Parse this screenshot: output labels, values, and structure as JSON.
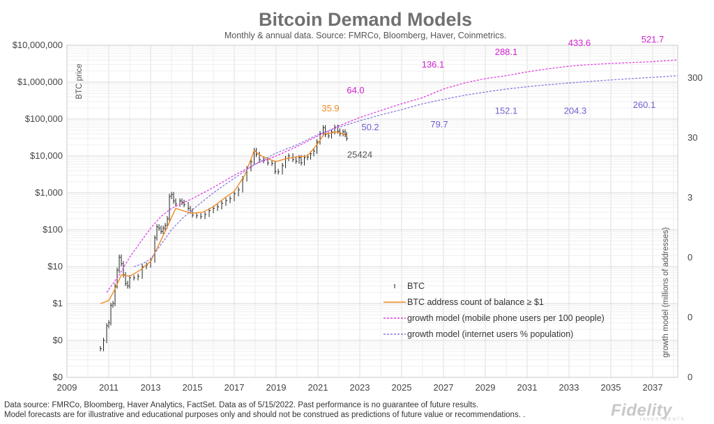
{
  "title": "Bitcoin Demand Models",
  "subtitle": "Monthly & annual data.  Source: FMRCo, Bloomberg, Haver, Coinmetrics.",
  "footer": {
    "line1": "Data source: FMRCo, Bloomberg, Haver Analytics, FactSet. Data as of 5/15/2022. Past performance is no guarantee of future results.",
    "line2": "Model forecasts are for illustrative and educational purposes only and should not be construed as predictions of future value or recommendations. ."
  },
  "logo": {
    "text": "Fidelity",
    "sub": "INVESTMENTS"
  },
  "colors": {
    "btc": "#222222",
    "address": "#f08a24",
    "mobile": "#e040e0",
    "internet": "#8a7ae0",
    "ann_mobile": "#d020d0",
    "ann_internet": "#7060d0",
    "ann_address": "#f08a24",
    "ann_btc": "#555555"
  },
  "chart_data": {
    "type": "line",
    "title": "Bitcoin Demand Models",
    "ylabel": "BTC price",
    "ylabel_right": "growth model (millions of addresses)",
    "x_ticks": [
      "2009",
      "2011",
      "2013",
      "2015",
      "2017",
      "2019",
      "2021",
      "2023",
      "2025",
      "2027",
      "2029",
      "2031",
      "2033",
      "2035",
      "2037"
    ],
    "xlim": [
      2009,
      2038.2
    ],
    "y_scale": "log",
    "y_tick_labels": [
      "$10,000,000",
      "$1,000,000",
      "$100,000",
      "$10,000",
      "$1,000",
      "$100",
      "$10",
      "$1",
      "$0",
      "$0"
    ],
    "y_tick_values": [
      10000000,
      1000000,
      100000,
      10000,
      1000,
      100,
      10,
      1,
      0.1,
      0.01
    ],
    "ylim": [
      0.01,
      10000000
    ],
    "right_tick_labels": [
      "300",
      "30",
      "3",
      "0",
      "0",
      "0"
    ],
    "right_tick_values": [
      300,
      30,
      3,
      0.3,
      0.03,
      0.003
    ],
    "grid": true,
    "legend_position": "bottom-center",
    "legend": [
      "BTC",
      "BTC address count of balance ≥ $1",
      "growth model (mobile phone users per 100 people)",
      "growth model (internet users % population)"
    ],
    "annotations": [
      {
        "text": "64.0",
        "x": 2022.8,
        "y": 500000,
        "series": "mobile"
      },
      {
        "text": "136.1",
        "x": 2026.5,
        "y": 2500000,
        "series": "mobile"
      },
      {
        "text": "288.1",
        "x": 2030.0,
        "y": 5500000,
        "series": "mobile"
      },
      {
        "text": "433.6",
        "x": 2033.5,
        "y": 9500000,
        "series": "mobile"
      },
      {
        "text": "521.7",
        "x": 2037.0,
        "y": 12000000,
        "series": "mobile"
      },
      {
        "text": "35.9",
        "x": 2021.6,
        "y": 160000,
        "series": "address"
      },
      {
        "text": "50.2",
        "x": 2023.5,
        "y": 50000,
        "series": "internet"
      },
      {
        "text": "79.7",
        "x": 2026.8,
        "y": 60000,
        "series": "internet"
      },
      {
        "text": "152.1",
        "x": 2030.0,
        "y": 140000,
        "series": "internet"
      },
      {
        "text": "204.3",
        "x": 2033.3,
        "y": 140000,
        "series": "internet"
      },
      {
        "text": "260.1",
        "x": 2036.6,
        "y": 200000,
        "series": "internet"
      },
      {
        "text": "25424",
        "x": 2023.0,
        "y": 9000,
        "series": "btc"
      }
    ],
    "series": [
      {
        "name": "BTC",
        "style": "ohlc",
        "points": [
          [
            2010.6,
            0.06
          ],
          [
            2010.75,
            0.1
          ],
          [
            2010.9,
            0.25
          ],
          [
            2011.0,
            0.3
          ],
          [
            2011.1,
            0.9
          ],
          [
            2011.2,
            1
          ],
          [
            2011.3,
            3
          ],
          [
            2011.4,
            8
          ],
          [
            2011.5,
            18
          ],
          [
            2011.6,
            12
          ],
          [
            2011.7,
            6
          ],
          [
            2011.8,
            3.5
          ],
          [
            2011.9,
            3
          ],
          [
            2012.0,
            5
          ],
          [
            2012.2,
            5
          ],
          [
            2012.4,
            5.5
          ],
          [
            2012.6,
            10
          ],
          [
            2012.8,
            11
          ],
          [
            2013.0,
            15
          ],
          [
            2013.2,
            60
          ],
          [
            2013.3,
            120
          ],
          [
            2013.4,
            110
          ],
          [
            2013.5,
            90
          ],
          [
            2013.6,
            110
          ],
          [
            2013.7,
            130
          ],
          [
            2013.8,
            200
          ],
          [
            2013.9,
            800
          ],
          [
            2014.0,
            900
          ],
          [
            2014.1,
            600
          ],
          [
            2014.2,
            500
          ],
          [
            2014.4,
            600
          ],
          [
            2014.5,
            550
          ],
          [
            2014.6,
            480
          ],
          [
            2014.8,
            380
          ],
          [
            2014.9,
            320
          ],
          [
            2015.0,
            250
          ],
          [
            2015.2,
            240
          ],
          [
            2015.4,
            230
          ],
          [
            2015.6,
            260
          ],
          [
            2015.8,
            330
          ],
          [
            2016.0,
            380
          ],
          [
            2016.2,
            420
          ],
          [
            2016.4,
            520
          ],
          [
            2016.6,
            620
          ],
          [
            2016.8,
            700
          ],
          [
            2017.0,
            950
          ],
          [
            2017.2,
            1200
          ],
          [
            2017.4,
            2400
          ],
          [
            2017.6,
            4500
          ],
          [
            2017.8,
            7000
          ],
          [
            2017.95,
            14000
          ],
          [
            2018.05,
            11000
          ],
          [
            2018.2,
            8000
          ],
          [
            2018.4,
            7500
          ],
          [
            2018.6,
            6500
          ],
          [
            2018.8,
            6300
          ],
          [
            2018.95,
            3800
          ],
          [
            2019.1,
            3700
          ],
          [
            2019.3,
            5500
          ],
          [
            2019.45,
            8500
          ],
          [
            2019.6,
            10000
          ],
          [
            2019.8,
            8000
          ],
          [
            2019.95,
            7200
          ],
          [
            2020.1,
            9000
          ],
          [
            2020.2,
            6500
          ],
          [
            2020.35,
            9000
          ],
          [
            2020.5,
            9300
          ],
          [
            2020.65,
            11500
          ],
          [
            2020.8,
            13500
          ],
          [
            2020.95,
            24000
          ],
          [
            2021.1,
            40000
          ],
          [
            2021.25,
            58000
          ],
          [
            2021.35,
            38000
          ],
          [
            2021.5,
            35000
          ],
          [
            2021.65,
            45000
          ],
          [
            2021.8,
            60000
          ],
          [
            2021.95,
            47000
          ],
          [
            2022.05,
            40000
          ],
          [
            2022.2,
            45000
          ],
          [
            2022.3,
            38000
          ],
          [
            2022.37,
            30000
          ]
        ]
      },
      {
        "name": "BTC address count of balance ≥ $1",
        "style": "solid",
        "points": [
          [
            2010.6,
            1.0
          ],
          [
            2011.0,
            1.2
          ],
          [
            2011.3,
            2.5
          ],
          [
            2011.6,
            6
          ],
          [
            2012.0,
            5.5
          ],
          [
            2012.5,
            8
          ],
          [
            2013.0,
            14
          ],
          [
            2013.4,
            40
          ],
          [
            2013.8,
            120
          ],
          [
            2014.2,
            380
          ],
          [
            2014.6,
            320
          ],
          [
            2015.0,
            280
          ],
          [
            2015.5,
            300
          ],
          [
            2016.0,
            420
          ],
          [
            2016.5,
            700
          ],
          [
            2017.0,
            1100
          ],
          [
            2017.5,
            3000
          ],
          [
            2017.95,
            14000
          ],
          [
            2018.3,
            10000
          ],
          [
            2018.7,
            8000
          ],
          [
            2019.0,
            7000
          ],
          [
            2019.5,
            8500
          ],
          [
            2020.0,
            9500
          ],
          [
            2020.5,
            10000
          ],
          [
            2021.0,
            22000
          ],
          [
            2021.3,
            40000
          ],
          [
            2021.6,
            42000
          ],
          [
            2021.9,
            45000
          ],
          [
            2022.2,
            40000
          ],
          [
            2022.37,
            35000
          ]
        ]
      },
      {
        "name": "growth model (mobile phone users per 100 people)",
        "style": "dashed",
        "points": [
          [
            2010.9,
            2
          ],
          [
            2011.5,
            6
          ],
          [
            2012.0,
            18
          ],
          [
            2012.5,
            45
          ],
          [
            2013.0,
            110
          ],
          [
            2013.5,
            230
          ],
          [
            2014.0,
            380
          ],
          [
            2014.5,
            520
          ],
          [
            2015.0,
            700
          ],
          [
            2016.0,
            1400
          ],
          [
            2017.0,
            3000
          ],
          [
            2018.0,
            6000
          ],
          [
            2019.0,
            10000
          ],
          [
            2020.0,
            18000
          ],
          [
            2021.0,
            35000
          ],
          [
            2022.0,
            65000
          ],
          [
            2023.0,
            110000
          ],
          [
            2024.0,
            170000
          ],
          [
            2025.0,
            260000
          ],
          [
            2026.0,
            380000
          ],
          [
            2027.0,
            650000
          ],
          [
            2028.0,
            950000
          ],
          [
            2029.0,
            1250000
          ],
          [
            2030.0,
            1500000
          ],
          [
            2031.0,
            1900000
          ],
          [
            2032.0,
            2300000
          ],
          [
            2033.0,
            2700000
          ],
          [
            2034.0,
            3000000
          ],
          [
            2035.0,
            3200000
          ],
          [
            2036.0,
            3400000
          ],
          [
            2037.0,
            3600000
          ],
          [
            2038.2,
            4000000
          ]
        ]
      },
      {
        "name": "growth model (internet users % population)",
        "style": "dashed",
        "points": [
          [
            2012.2,
            10
          ],
          [
            2012.6,
            12
          ],
          [
            2013.0,
            16
          ],
          [
            2013.5,
            40
          ],
          [
            2014.0,
            100
          ],
          [
            2014.5,
            200
          ],
          [
            2015.0,
            350
          ],
          [
            2016.0,
            1000
          ],
          [
            2017.0,
            2500
          ],
          [
            2018.0,
            6000
          ],
          [
            2019.0,
            12000
          ],
          [
            2020.0,
            20000
          ],
          [
            2021.0,
            38000
          ],
          [
            2022.0,
            60000
          ],
          [
            2023.0,
            90000
          ],
          [
            2024.0,
            130000
          ],
          [
            2025.0,
            180000
          ],
          [
            2026.0,
            260000
          ],
          [
            2027.0,
            340000
          ],
          [
            2028.0,
            440000
          ],
          [
            2029.0,
            540000
          ],
          [
            2030.0,
            650000
          ],
          [
            2031.0,
            750000
          ],
          [
            2032.0,
            850000
          ],
          [
            2033.0,
            950000
          ],
          [
            2034.0,
            1050000
          ],
          [
            2035.0,
            1150000
          ],
          [
            2036.0,
            1250000
          ],
          [
            2037.0,
            1350000
          ],
          [
            2038.2,
            1500000
          ]
        ]
      }
    ]
  }
}
